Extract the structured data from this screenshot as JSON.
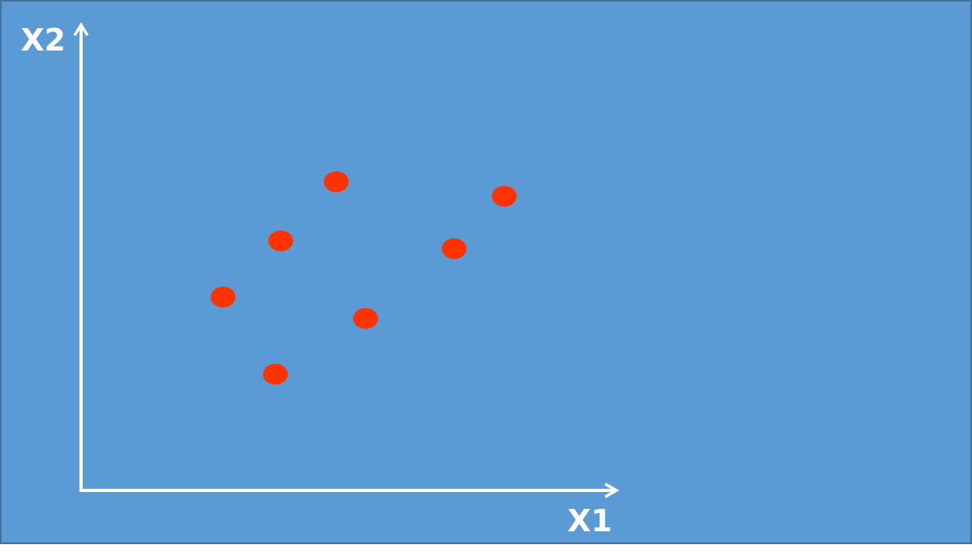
{
  "chart_data": {
    "type": "scatter",
    "xlabel": "X1",
    "ylabel": "X2",
    "xlim": [
      0,
      10
    ],
    "ylim": [
      0,
      10
    ],
    "grid": false,
    "points": [
      {
        "x": 2.66,
        "y": 4.16
      },
      {
        "x": 3.74,
        "y": 5.37
      },
      {
        "x": 4.78,
        "y": 6.64
      },
      {
        "x": 5.33,
        "y": 3.7
      },
      {
        "x": 6.99,
        "y": 5.2
      },
      {
        "x": 7.93,
        "y": 6.33
      },
      {
        "x": 3.64,
        "y": 2.5
      }
    ],
    "colors": {
      "background": "#5b9bd5",
      "border": "#41719c",
      "axis": "#ffffff",
      "point": "#ff3300"
    }
  }
}
